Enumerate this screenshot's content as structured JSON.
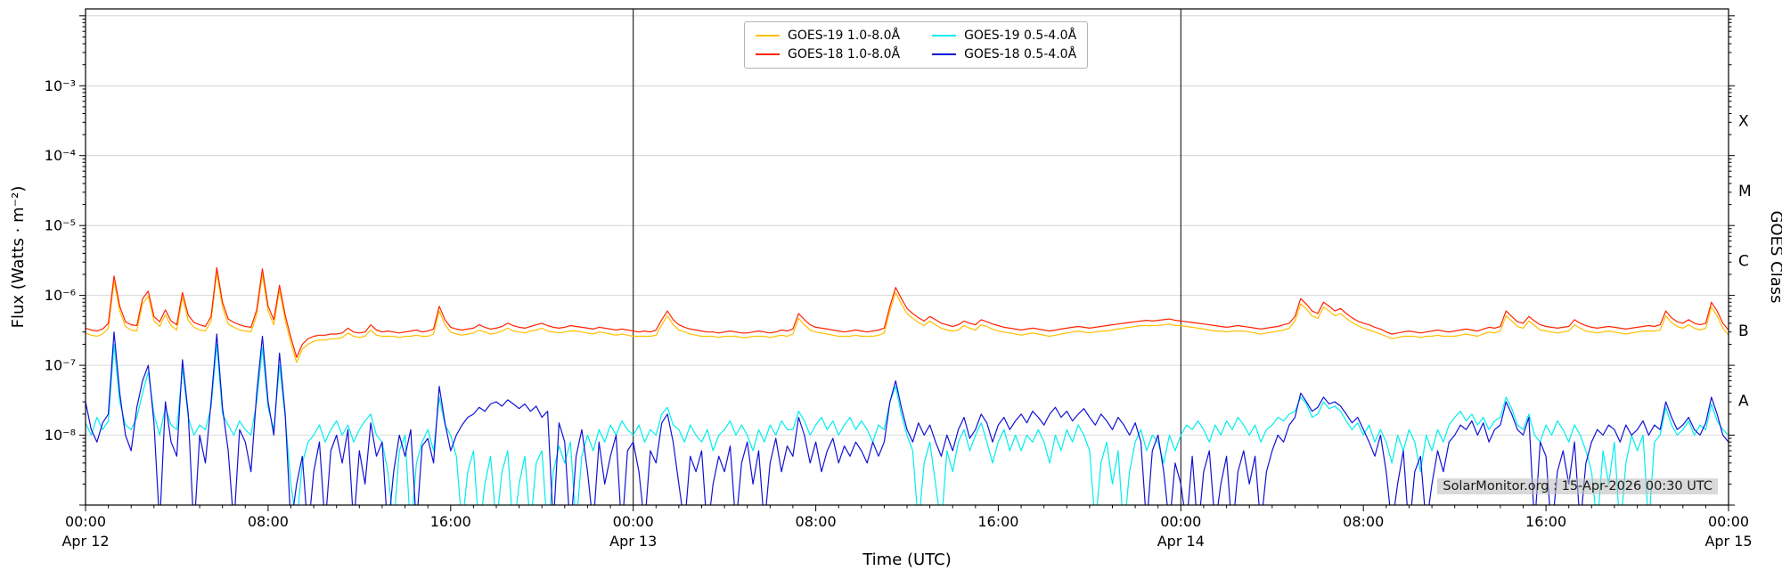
{
  "figure": {
    "watermark": "SolarMonitor.org : 15-Apr-2026 00:30 UTC"
  },
  "legend": {
    "entries": [
      {
        "label": "GOES-19 1.0-8.0Å",
        "color": "#ffbf00"
      },
      {
        "label": "GOES-18 1.0-8.0Å",
        "color": "#ff2200"
      },
      {
        "label": "GOES-19 0.5-4.0Å",
        "color": "#00eeee"
      },
      {
        "label": "GOES-18 0.5-4.0Å",
        "color": "#1111d6"
      }
    ]
  },
  "chart_data": {
    "type": "line",
    "xlabel": "Time (UTC)",
    "ylabel": "Flux (Watts · m⁻²)",
    "ylabel_right": "GOES Class",
    "x_unit": "hours since Apr 12 00:00 UTC",
    "xlim_hours": [
      0,
      72
    ],
    "y_scale": "log",
    "ylim_log10": [
      -9.0,
      -1.9
    ],
    "grid": "horizontal gridlines at each decade",
    "x_ticks": [
      {
        "hour": 0,
        "label": "00:00",
        "date_label": "Apr 12"
      },
      {
        "hour": 8,
        "label": "08:00"
      },
      {
        "hour": 16,
        "label": "16:00"
      },
      {
        "hour": 24,
        "label": "00:00",
        "date_label": "Apr 13"
      },
      {
        "hour": 32,
        "label": "08:00"
      },
      {
        "hour": 40,
        "label": "16:00"
      },
      {
        "hour": 48,
        "label": "00:00",
        "date_label": "Apr 14"
      },
      {
        "hour": 56,
        "label": "08:00"
      },
      {
        "hour": 64,
        "label": "16:00"
      },
      {
        "hour": 72,
        "label": "00:00",
        "date_label": "Apr 15"
      }
    ],
    "y_ticks": [
      {
        "log10": -3,
        "label": "10⁻³"
      },
      {
        "log10": -4,
        "label": "10⁻⁴"
      },
      {
        "log10": -5,
        "label": "10⁻⁵"
      },
      {
        "log10": -6,
        "label": "10⁻⁶"
      },
      {
        "log10": -7,
        "label": "10⁻⁷"
      },
      {
        "log10": -8,
        "label": "10⁻⁸"
      }
    ],
    "goes_class_bands": [
      {
        "label": "X",
        "log10_center": -3.5
      },
      {
        "label": "M",
        "log10_center": -4.5
      },
      {
        "label": "C",
        "log10_center": -5.5
      },
      {
        "label": "B",
        "log10_center": -6.5
      },
      {
        "label": "A",
        "log10_center": -7.5
      }
    ],
    "day_boundary_lines_hours": [
      24,
      48
    ],
    "value_unit": "1e-9 W m^-2",
    "series": [
      {
        "id": "goes19-long",
        "name": "GOES-19 1.0-8.0Å",
        "color": "#ffbf00",
        "x0": 0,
        "dx": 0.25,
        "values": [
          290,
          270,
          260,
          280,
          340,
          1600,
          600,
          360,
          320,
          310,
          760,
          980,
          430,
          360,
          530,
          370,
          320,
          940,
          440,
          350,
          320,
          310,
          430,
          2100,
          680,
          390,
          350,
          320,
          310,
          300,
          530,
          2000,
          600,
          380,
          1200,
          440,
          210,
          110,
          170,
          200,
          220,
          230,
          230,
          240,
          240,
          250,
          290,
          260,
          250,
          260,
          320,
          270,
          260,
          260,
          260,
          250,
          260,
          260,
          270,
          260,
          260,
          280,
          600,
          380,
          300,
          280,
          270,
          280,
          290,
          320,
          300,
          280,
          290,
          310,
          340,
          310,
          300,
          290,
          310,
          320,
          340,
          310,
          300,
          290,
          300,
          310,
          310,
          300,
          290,
          280,
          300,
          290,
          280,
          270,
          280,
          270,
          260,
          260,
          260,
          260,
          270,
          380,
          510,
          380,
          320,
          300,
          280,
          270,
          260,
          260,
          260,
          250,
          260,
          260,
          260,
          250,
          250,
          260,
          260,
          260,
          250,
          260,
          270,
          260,
          280,
          470,
          380,
          320,
          300,
          290,
          280,
          270,
          260,
          260,
          260,
          270,
          260,
          260,
          260,
          270,
          290,
          600,
          1100,
          760,
          550,
          470,
          410,
          370,
          430,
          380,
          340,
          320,
          310,
          320,
          370,
          340,
          320,
          380,
          360,
          330,
          310,
          300,
          290,
          280,
          270,
          280,
          290,
          280,
          270,
          260,
          270,
          280,
          290,
          300,
          310,
          300,
          290,
          300,
          310,
          310,
          320,
          330,
          340,
          350,
          360,
          370,
          370,
          370,
          370,
          380,
          390,
          370,
          370,
          360,
          350,
          340,
          330,
          320,
          310,
          310,
          300,
          310,
          310,
          310,
          300,
          290,
          280,
          290,
          300,
          310,
          320,
          340,
          430,
          760,
          640,
          510,
          470,
          680,
          600,
          510,
          550,
          470,
          410,
          370,
          340,
          320,
          300,
          280,
          260,
          240,
          250,
          260,
          260,
          260,
          250,
          260,
          260,
          270,
          260,
          260,
          260,
          270,
          280,
          270,
          260,
          280,
          300,
          290,
          310,
          510,
          430,
          360,
          340,
          430,
          370,
          320,
          310,
          300,
          290,
          300,
          310,
          380,
          340,
          310,
          300,
          290,
          300,
          310,
          300,
          290,
          280,
          290,
          300,
          310,
          310,
          310,
          320,
          510,
          410,
          360,
          340,
          380,
          340,
          320,
          340,
          680,
          510,
          340,
          270
        ]
      },
      {
        "id": "goes18-long",
        "name": "GOES-18 1.0-8.0Å",
        "color": "#ff2200",
        "x0": 0,
        "dx": 0.25,
        "values": [
          340,
          320,
          310,
          330,
          400,
          1900,
          700,
          420,
          380,
          370,
          900,
          1150,
          500,
          420,
          620,
          430,
          380,
          1100,
          520,
          410,
          380,
          360,
          500,
          2500,
          800,
          460,
          410,
          380,
          360,
          350,
          620,
          2400,
          700,
          450,
          1400,
          520,
          250,
          130,
          200,
          240,
          260,
          270,
          270,
          280,
          280,
          290,
          340,
          300,
          290,
          300,
          380,
          320,
          300,
          310,
          300,
          290,
          300,
          310,
          320,
          300,
          310,
          330,
          700,
          450,
          350,
          330,
          320,
          330,
          340,
          380,
          350,
          330,
          340,
          360,
          400,
          370,
          350,
          340,
          360,
          380,
          400,
          370,
          350,
          340,
          350,
          370,
          360,
          350,
          340,
          330,
          350,
          340,
          330,
          320,
          330,
          320,
          310,
          300,
          310,
          300,
          320,
          450,
          600,
          450,
          380,
          350,
          330,
          320,
          310,
          300,
          300,
          290,
          300,
          310,
          300,
          290,
          290,
          300,
          310,
          300,
          290,
          300,
          320,
          310,
          330,
          550,
          450,
          380,
          350,
          340,
          330,
          320,
          310,
          300,
          310,
          320,
          310,
          300,
          310,
          320,
          340,
          700,
          1300,
          900,
          650,
          550,
          480,
          430,
          500,
          450,
          400,
          380,
          360,
          380,
          430,
          400,
          380,
          450,
          420,
          390,
          370,
          350,
          340,
          330,
          320,
          330,
          340,
          330,
          320,
          310,
          320,
          330,
          340,
          350,
          360,
          350,
          340,
          350,
          360,
          370,
          380,
          390,
          400,
          410,
          420,
          430,
          440,
          430,
          440,
          450,
          460,
          440,
          430,
          420,
          410,
          400,
          390,
          380,
          370,
          360,
          350,
          360,
          370,
          360,
          350,
          340,
          330,
          340,
          350,
          360,
          380,
          400,
          500,
          900,
          750,
          600,
          550,
          800,
          700,
          600,
          650,
          550,
          480,
          430,
          400,
          380,
          350,
          330,
          300,
          280,
          290,
          300,
          310,
          300,
          290,
          300,
          310,
          320,
          310,
          300,
          310,
          320,
          330,
          320,
          310,
          330,
          350,
          340,
          360,
          600,
          500,
          420,
          400,
          500,
          430,
          380,
          360,
          350,
          340,
          350,
          360,
          450,
          400,
          370,
          350,
          340,
          350,
          360,
          350,
          340,
          330,
          340,
          350,
          360,
          370,
          360,
          380,
          600,
          480,
          420,
          400,
          450,
          400,
          380,
          400,
          800,
          600,
          400,
          320
        ]
      },
      {
        "id": "goes19-short",
        "name": "GOES-19 0.5-4.0Å",
        "color": "#00eeee",
        "x0": 0,
        "dx": 0.25,
        "values": [
          15,
          10,
          18,
          12,
          16,
          200,
          30,
          14,
          12,
          18,
          40,
          80,
          20,
          10,
          25,
          14,
          12,
          90,
          18,
          10,
          14,
          12,
          25,
          200,
          20,
          14,
          10,
          16,
          12,
          10,
          30,
          180,
          25,
          12,
          100,
          18,
          2,
          0.5,
          4,
          8,
          10,
          14,
          8,
          12,
          16,
          10,
          14,
          8,
          12,
          16,
          20,
          10,
          8,
          3,
          0.5,
          6,
          10,
          0.4,
          4,
          8,
          12,
          6,
          35,
          14,
          10,
          5,
          0.5,
          3,
          6,
          0.4,
          2,
          5,
          0.5,
          3,
          6,
          0.4,
          2,
          5,
          0.5,
          4,
          6,
          0.4,
          3,
          7,
          4,
          8,
          0.5,
          5,
          10,
          6,
          12,
          8,
          14,
          10,
          16,
          12,
          10,
          14,
          8,
          12,
          10,
          20,
          25,
          14,
          12,
          8,
          14,
          10,
          8,
          12,
          6,
          10,
          12,
          16,
          10,
          14,
          10,
          6,
          12,
          8,
          14,
          10,
          16,
          12,
          12,
          22,
          16,
          10,
          14,
          18,
          12,
          16,
          10,
          14,
          18,
          12,
          16,
          12,
          8,
          14,
          12,
          30,
          50,
          20,
          10,
          6,
          0.5,
          4,
          8,
          2,
          0.5,
          6,
          3,
          8,
          12,
          6,
          10,
          15,
          8,
          4,
          8,
          12,
          6,
          10,
          6,
          10,
          8,
          12,
          8,
          4,
          10,
          6,
          12,
          8,
          14,
          10,
          6,
          0.5,
          4,
          8,
          2,
          6,
          0.4,
          3,
          8,
          12,
          6,
          10,
          8,
          4,
          10,
          6,
          10,
          14,
          12,
          16,
          12,
          8,
          14,
          10,
          16,
          12,
          18,
          14,
          10,
          14,
          8,
          12,
          14,
          18,
          16,
          20,
          22,
          35,
          28,
          18,
          20,
          30,
          24,
          26,
          22,
          16,
          12,
          15,
          10,
          14,
          8,
          12,
          8,
          4,
          10,
          6,
          12,
          8,
          3,
          10,
          6,
          12,
          8,
          14,
          18,
          22,
          16,
          20,
          14,
          18,
          12,
          16,
          18,
          35,
          24,
          14,
          12,
          20,
          10,
          8,
          14,
          10,
          16,
          12,
          8,
          14,
          10,
          6,
          3,
          0.5,
          6,
          2,
          8,
          0.4,
          4,
          10,
          6,
          10,
          0.5,
          8,
          10,
          25,
          14,
          10,
          12,
          16,
          10,
          14,
          12,
          28,
          16,
          12,
          10
        ]
      },
      {
        "id": "goes18-short",
        "name": "GOES-18 0.5-4.0Å",
        "color": "#1111d6",
        "x0": 0,
        "dx": 0.25,
        "values": [
          30,
          12,
          8,
          15,
          20,
          300,
          40,
          10,
          6,
          25,
          60,
          100,
          15,
          0.5,
          30,
          8,
          5,
          120,
          20,
          0.4,
          10,
          4,
          30,
          280,
          25,
          6,
          0.5,
          12,
          8,
          3,
          40,
          260,
          30,
          10,
          150,
          20,
          0.5,
          2,
          5,
          0.4,
          3,
          8,
          0.5,
          6,
          10,
          4,
          12,
          0.5,
          6,
          2,
          15,
          5,
          8,
          0.4,
          3,
          10,
          5,
          12,
          0.5,
          7,
          9,
          4,
          50,
          15,
          6,
          10,
          14,
          18,
          20,
          25,
          22,
          28,
          30,
          26,
          32,
          28,
          24,
          28,
          22,
          26,
          18,
          22,
          0.5,
          15,
          8,
          0.4,
          5,
          12,
          3,
          0.5,
          8,
          2,
          5,
          10,
          0.4,
          6,
          8,
          3,
          0.5,
          6,
          4,
          15,
          20,
          8,
          2,
          0.5,
          5,
          3,
          6,
          0.4,
          2,
          5,
          3,
          7,
          0.5,
          4,
          8,
          2,
          6,
          0.5,
          4,
          9,
          3,
          7,
          5,
          18,
          10,
          4,
          8,
          3,
          6,
          9,
          4,
          7,
          5,
          8,
          6,
          4,
          8,
          5,
          8,
          30,
          60,
          25,
          12,
          8,
          15,
          10,
          14,
          8,
          5,
          10,
          6,
          12,
          18,
          9,
          12,
          20,
          15,
          8,
          14,
          18,
          12,
          16,
          20,
          15,
          22,
          18,
          14,
          20,
          25,
          18,
          22,
          16,
          20,
          24,
          18,
          14,
          20,
          16,
          12,
          18,
          14,
          10,
          15,
          8,
          0.5,
          6,
          10,
          3,
          0.5,
          4,
          2,
          0.5,
          5,
          0.4,
          3,
          6,
          0.5,
          2,
          5,
          0.4,
          3,
          6,
          2,
          5,
          0.5,
          3,
          6,
          10,
          8,
          14,
          18,
          40,
          30,
          22,
          25,
          35,
          28,
          30,
          26,
          20,
          15,
          18,
          12,
          8,
          5,
          10,
          3,
          0.5,
          2,
          6,
          0.4,
          3,
          5,
          0.5,
          2,
          6,
          3,
          8,
          10,
          14,
          12,
          16,
          10,
          15,
          8,
          12,
          14,
          30,
          20,
          12,
          10,
          18,
          0.5,
          8,
          5,
          0.4,
          3,
          6,
          2,
          8,
          0.5,
          4,
          8,
          12,
          10,
          14,
          12,
          8,
          14,
          10,
          12,
          16,
          10,
          14,
          12,
          30,
          18,
          12,
          14,
          18,
          12,
          10,
          15,
          35,
          20,
          10,
          8
        ]
      }
    ]
  }
}
